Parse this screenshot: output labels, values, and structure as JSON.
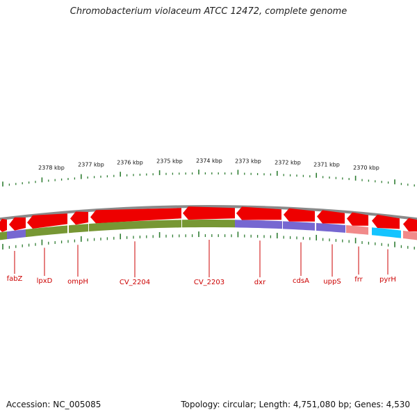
{
  "title": "Chromobacterium violaceum ATCC 12472, complete genome",
  "footer": {
    "accession": "Accession: NC_005085",
    "stats": "Topology: circular; Length: 4,751,080 bp; Genes: 4,530"
  },
  "scale_labels": [
    "2378 kbp",
    "2377 kbp",
    "2376 kbp",
    "2375 kbp",
    "2374 kbp",
    "2373 kbp",
    "2372 kbp",
    "2371 kbp",
    "2370 kbp"
  ],
  "gene_labels": [
    "fabZ",
    "lpxD",
    "ompH",
    "CV_2204",
    "CV_2203",
    "dxr",
    "cdsA",
    "uppS",
    "frr",
    "pyrH"
  ],
  "colors": {
    "gene": "#ee0000",
    "backbone": "#8a8a8a",
    "olive": "#6b8e23",
    "purple": "#6a5acd",
    "pink": "#f08080",
    "cyan": "#00bfff",
    "tick": "#2e7d32",
    "label": "#cc0000"
  }
}
